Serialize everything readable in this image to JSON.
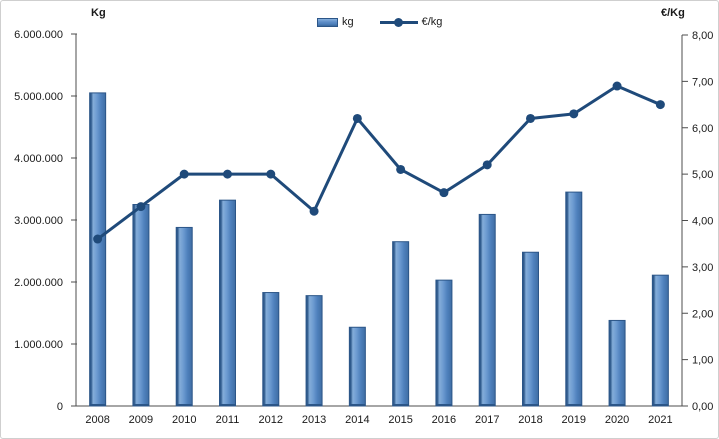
{
  "chart_data": {
    "type": "bar",
    "subtype": "combo-bar-line",
    "title": "",
    "grid": false,
    "legend_position": "top-center",
    "categories": [
      "2008",
      "2009",
      "2010",
      "2011",
      "2012",
      "2013",
      "2014",
      "2015",
      "2016",
      "2017",
      "2018",
      "2019",
      "2020",
      "2021"
    ],
    "series": [
      {
        "name": "kg",
        "type": "bar",
        "axis": "left",
        "values": [
          5050000,
          3250000,
          2880000,
          3320000,
          1830000,
          1780000,
          1270000,
          2650000,
          2030000,
          3090000,
          2480000,
          3450000,
          1380000,
          2110000
        ]
      },
      {
        "name": "€/kg",
        "type": "line",
        "axis": "right",
        "values": [
          3.6,
          4.3,
          5.0,
          5.0,
          5.0,
          4.2,
          6.2,
          5.1,
          4.6,
          5.2,
          6.2,
          6.3,
          6.9,
          6.5
        ]
      }
    ],
    "left_axis": {
      "label": "Kg",
      "min": 0,
      "max": 6000000,
      "step": 1000000,
      "tick_labels": [
        "0",
        "1.000.000",
        "2.000.000",
        "3.000.000",
        "4.000.000",
        "5.000.000",
        "6.000.000"
      ]
    },
    "right_axis": {
      "label": "€/Kg",
      "min": 0,
      "max": 8,
      "step": 1,
      "tick_labels": [
        "0,00",
        "1,00",
        "2,00",
        "3,00",
        "4,00",
        "5,00",
        "6,00",
        "7,00",
        "8,00"
      ]
    },
    "legend_items": [
      {
        "label": "kg",
        "swatch": "bar"
      },
      {
        "label": "€/kg",
        "swatch": "line-marker"
      }
    ],
    "colors": {
      "bar_fill": "#4F81BD",
      "bar_highlight": "#84ADD9",
      "bar_edge": "#2C5688",
      "line": "#1F4A7A",
      "axis": "#4d4d4d",
      "text": "#1a1a1a"
    }
  }
}
